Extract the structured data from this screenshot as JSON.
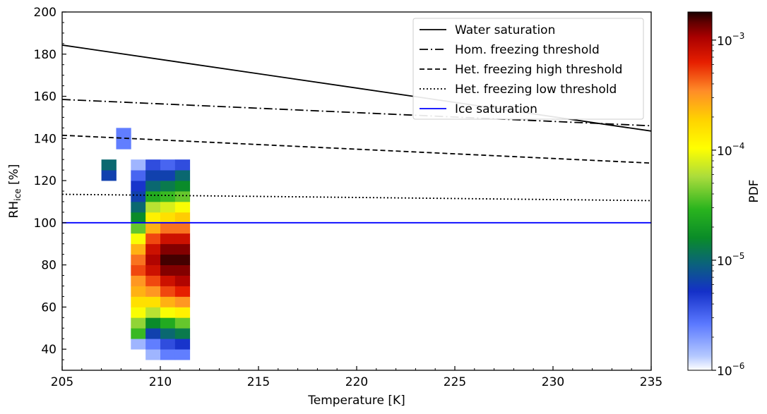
{
  "chart_data": {
    "type": "heatmap",
    "xlabel": "Temperature [K]",
    "ylabel_main": "RH",
    "ylabel_sub": "ice",
    "ylabel_unit": " [%]",
    "xlim": [
      205,
      235
    ],
    "ylim": [
      30,
      200
    ],
    "xticks": [
      "205",
      "210",
      "215",
      "220",
      "225",
      "230",
      "235"
    ],
    "yticks": [
      "40",
      "60",
      "80",
      "100",
      "120",
      "140",
      "160",
      "180",
      "200"
    ],
    "xtick_values": [
      205,
      210,
      215,
      220,
      225,
      230,
      235
    ],
    "ytick_values": [
      40,
      60,
      80,
      100,
      120,
      140,
      160,
      180,
      200
    ],
    "colorbar": {
      "label": "PDF",
      "scale": "log",
      "range": [
        1e-06,
        0.0018
      ],
      "tick_bases": [
        "10",
        "10",
        "10",
        "10"
      ],
      "tick_exponents": [
        "−3",
        "−4",
        "−5",
        "−6"
      ],
      "tick_values": [
        0.001,
        0.0001,
        1e-05,
        1e-06
      ]
    },
    "lines": [
      {
        "name": "Water saturation",
        "style": "solid",
        "color": "#000000",
        "x": [
          205,
          235
        ],
        "y": [
          184.3,
          143.5
        ]
      },
      {
        "name": "Hom. freezing threshold",
        "style": "dashdot",
        "color": "#000000",
        "x": [
          205,
          235
        ],
        "y": [
          158.5,
          146
        ]
      },
      {
        "name": "Het. freezing high threshold",
        "style": "dashed",
        "color": "#000000",
        "x": [
          205,
          235
        ],
        "y": [
          141.5,
          128.3
        ]
      },
      {
        "name": "Het. freezing low threshold",
        "style": "dotted",
        "color": "#000000",
        "x": [
          205,
          235
        ],
        "y": [
          113.5,
          110.5
        ]
      },
      {
        "name": "Ice saturation",
        "style": "solid",
        "color": "#0000ff",
        "x": [
          205,
          235
        ],
        "y": [
          100,
          100
        ]
      }
    ],
    "legend_position": "top-right",
    "grid": false,
    "bins": {
      "x_start": 207,
      "x_step": 0.75,
      "y_start": 30,
      "y_step": 5,
      "columns": [
        {
          "y0": 120,
          "v": [
            -5.2,
            -5.0
          ]
        },
        {
          "y0": 135,
          "v": [
            -5.6,
            -5.6
          ]
        },
        {
          "y0": 40,
          "v": [
            -5.8,
            -4.5,
            -4.3,
            -4.0,
            -3.8,
            -3.6,
            -3.5,
            -3.3,
            -3.4,
            -3.6,
            -4.0,
            -4.4,
            -4.8,
            -5.0,
            -5.2,
            -5.3,
            -5.5,
            -5.8
          ]
        },
        {
          "y0": 35,
          "v": [
            -5.8,
            -5.6,
            -5.2,
            -4.8,
            -4.2,
            -3.8,
            -3.5,
            -3.3,
            -3.1,
            -3.0,
            -3.1,
            -3.3,
            -3.6,
            -3.9,
            -4.2,
            -4.6,
            -5.0,
            -5.2,
            -5.4
          ]
        },
        {
          "y0": 35,
          "v": [
            -5.6,
            -5.4,
            -5.0,
            -4.6,
            -4.0,
            -3.6,
            -3.3,
            -3.1,
            -2.9,
            -2.8,
            -2.9,
            -3.1,
            -3.4,
            -3.8,
            -4.1,
            -4.5,
            -4.9,
            -5.2,
            -5.5
          ]
        },
        {
          "y0": 35,
          "v": [
            -5.6,
            -5.3,
            -4.9,
            -4.4,
            -3.9,
            -3.5,
            -3.2,
            -3.0,
            -2.9,
            -2.8,
            -2.9,
            -3.1,
            -3.4,
            -3.7,
            -4.0,
            -4.4,
            -4.8,
            -5.0,
            -5.4
          ]
        }
      ]
    }
  }
}
